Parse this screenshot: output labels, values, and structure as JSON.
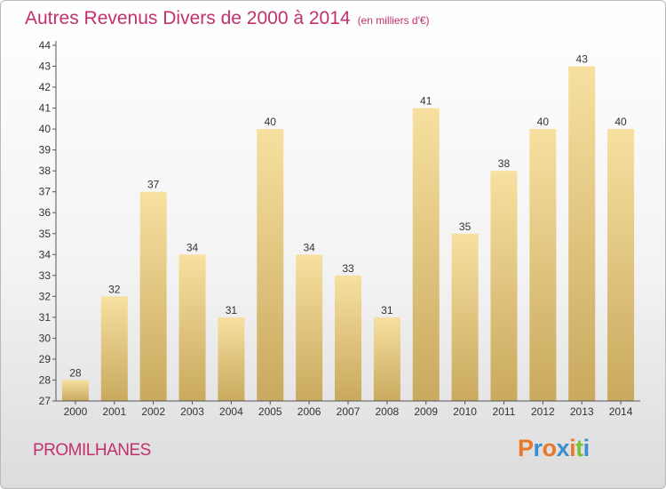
{
  "chart_data": {
    "type": "bar",
    "title": "Autres Revenus Divers de 2000 à 2014",
    "subtitle": "(en milliers d'€)",
    "categories": [
      "2000",
      "2001",
      "2002",
      "2003",
      "2004",
      "2005",
      "2006",
      "2007",
      "2008",
      "2009",
      "2010",
      "2011",
      "2012",
      "2013",
      "2014"
    ],
    "values": [
      28,
      32,
      37,
      34,
      31,
      40,
      34,
      33,
      31,
      41,
      35,
      38,
      40,
      43,
      40
    ],
    "ylim": [
      27,
      44
    ],
    "yticks": [
      27,
      28,
      29,
      30,
      31,
      32,
      33,
      34,
      35,
      36,
      37,
      38,
      39,
      40,
      41,
      42,
      43,
      44
    ],
    "grid": false,
    "xlabel": "",
    "ylabel": "",
    "bar_color_top": "#f7e0a0",
    "bar_color_bottom": "#c9a95e"
  },
  "footer": {
    "commune": "PROMILHANES",
    "logo_letters": [
      "P",
      "r",
      "o",
      "x",
      "i",
      "t",
      "i"
    ],
    "logo_colors": [
      "#e8792a",
      "#3a8fd0",
      "#e8792a",
      "#3a8fd0",
      "#e8792a",
      "#7bbf3a",
      "#3a8fd0"
    ]
  }
}
